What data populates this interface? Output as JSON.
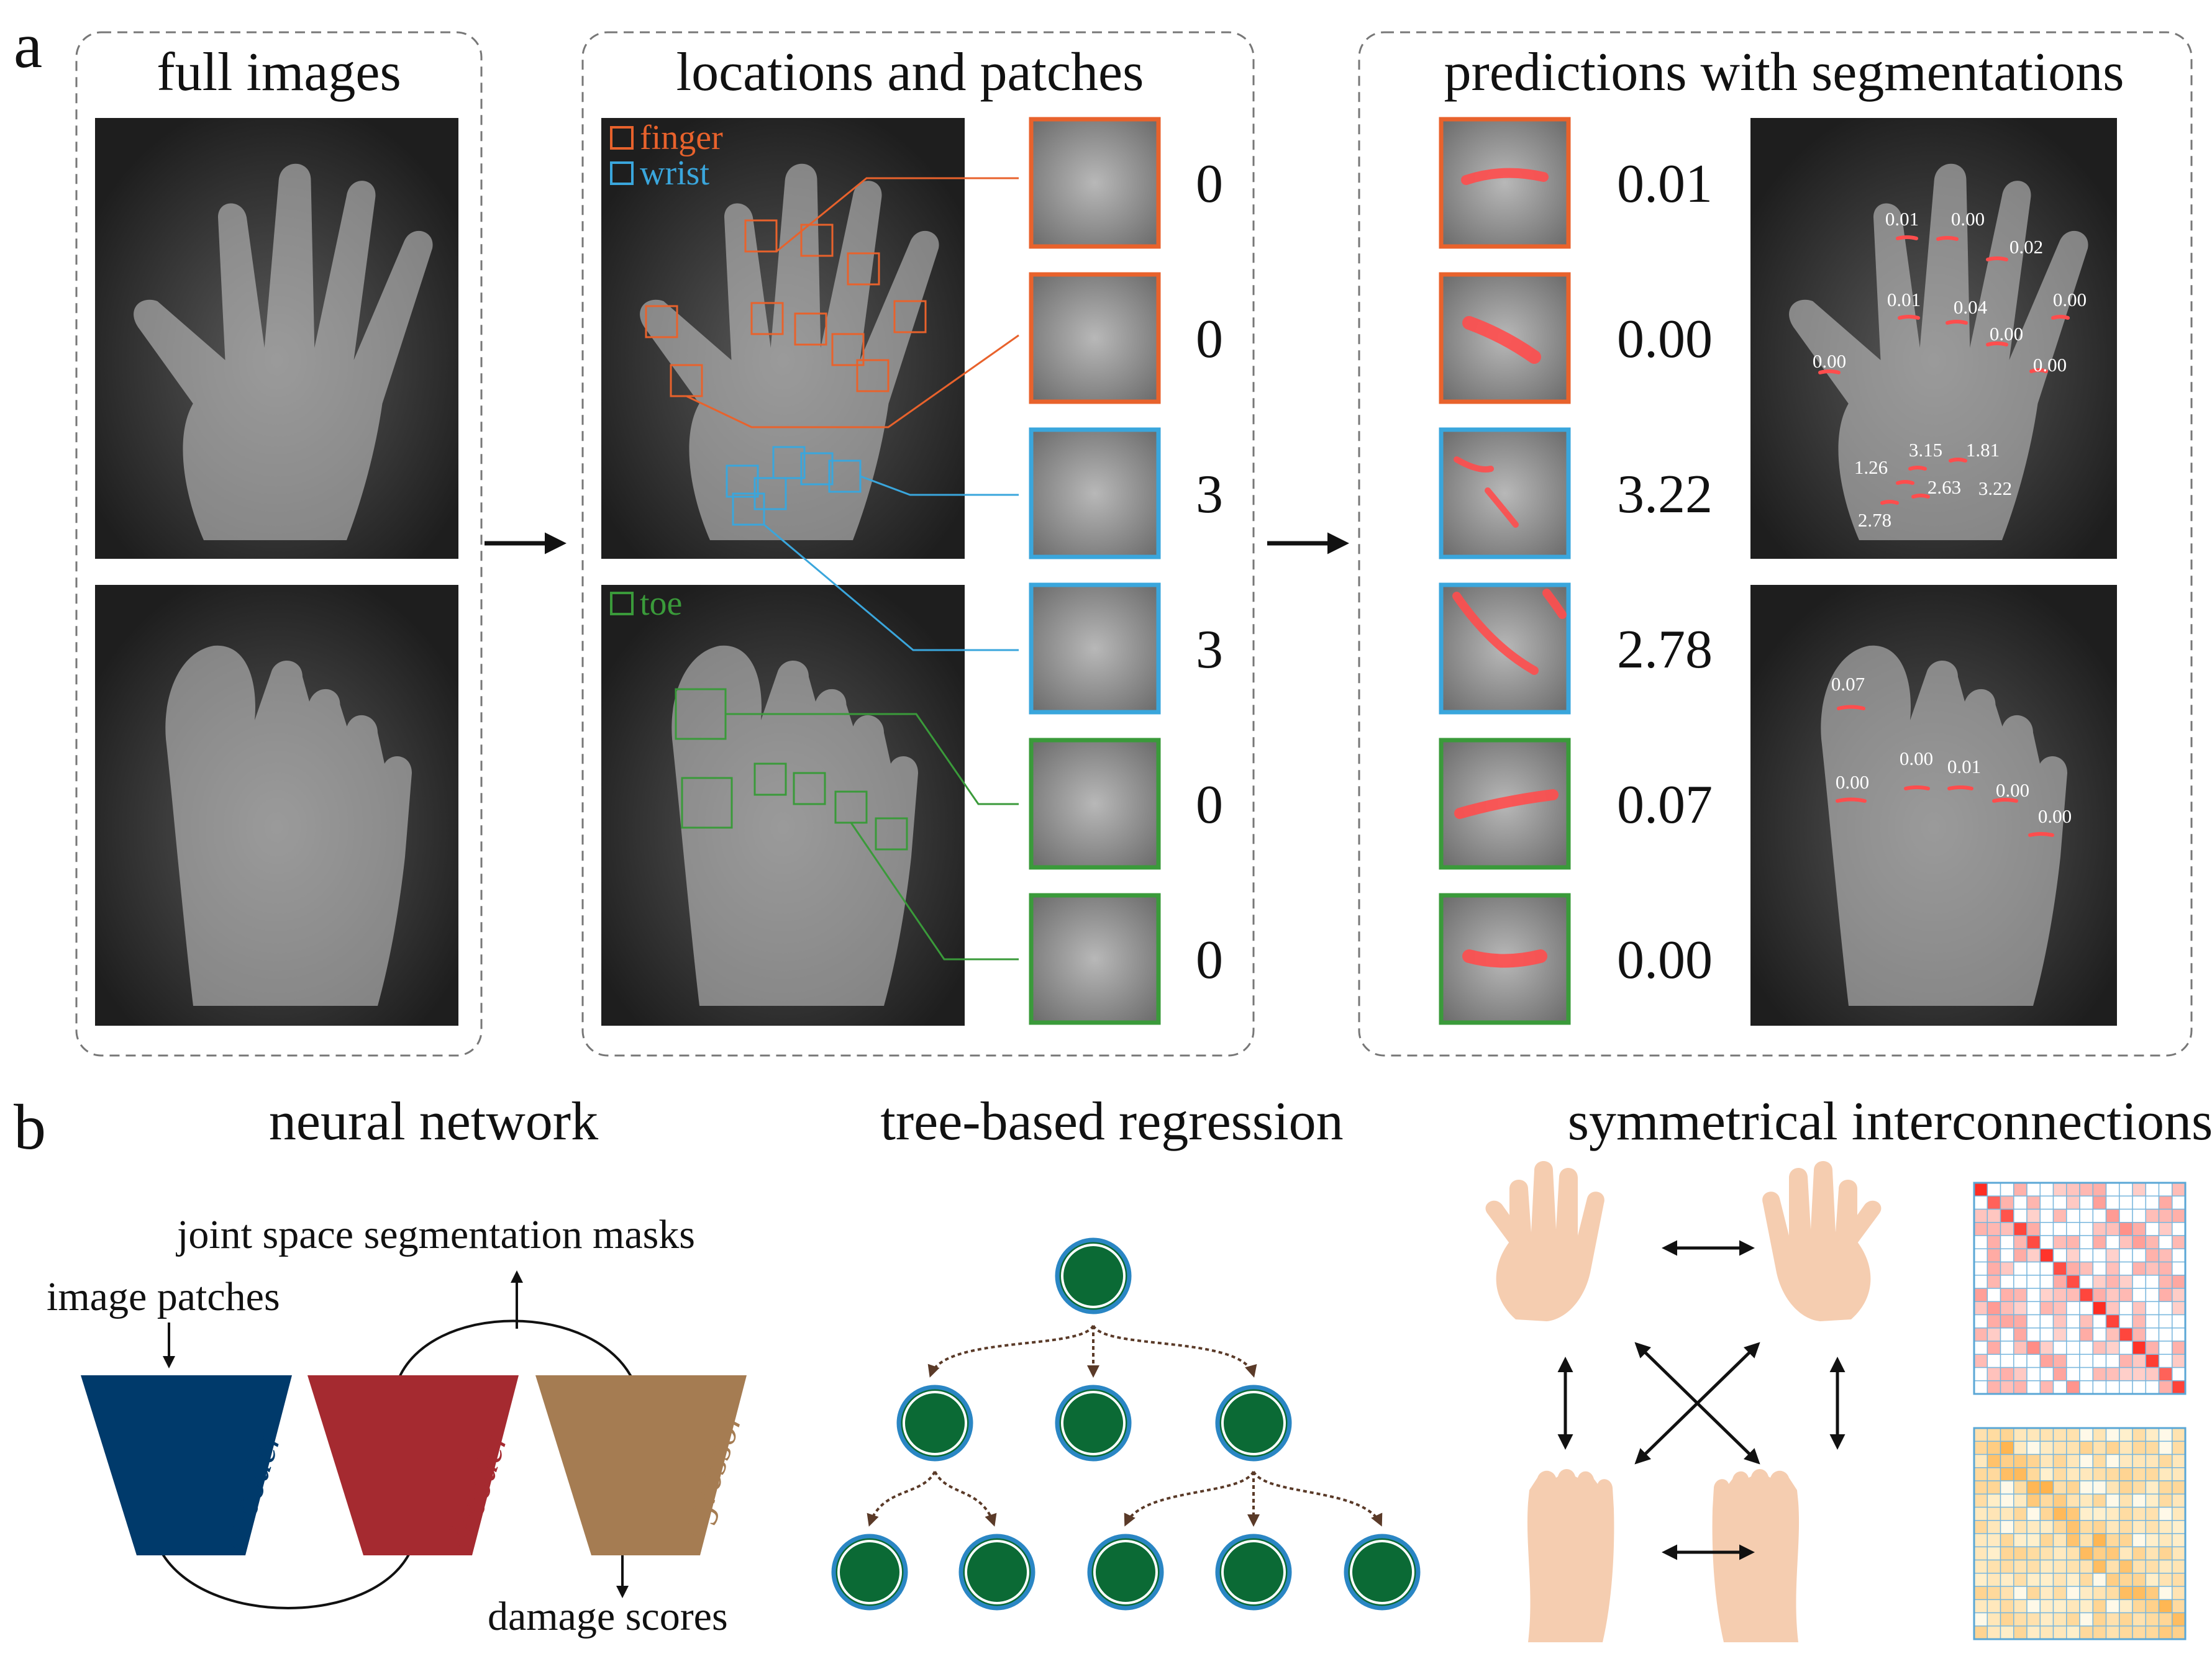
{
  "panels": {
    "a": {
      "letter": "a",
      "sections": {
        "full_images": {
          "title": "full images"
        },
        "locations": {
          "title": "locations and patches",
          "legend": {
            "finger": "finger",
            "wrist": "wrist",
            "toe": "toe"
          },
          "scores": [
            "0",
            "0",
            "3",
            "3",
            "0",
            "0"
          ]
        },
        "predictions": {
          "title": "predictions with segmentations",
          "scores": [
            "0.01",
            "0.00",
            "3.22",
            "2.78",
            "0.07",
            "0.00"
          ],
          "hand_labels": [
            "0.01",
            "0.00",
            "0.02",
            "0.01",
            "0.04",
            "0.00",
            "0.00",
            "0.00",
            "0.00",
            "3.15",
            "1.81",
            "1.26",
            "2.63",
            "3.22",
            "2.78"
          ],
          "foot_labels": [
            "0.07",
            "0.00",
            "0.00",
            "0.01",
            "0.00",
            "0.00"
          ]
        }
      }
    },
    "b": {
      "letter": "b",
      "neural_network": {
        "title": "neural network",
        "masks_label": "joint space segmentation masks",
        "patches_label": "image patches",
        "damage_label": "damage scores",
        "encoder": "encoder",
        "decoder": "decoder",
        "regressor": "regressor"
      },
      "tree": {
        "title": "tree-based regression"
      },
      "symmetry": {
        "title": "symmetrical interconnections"
      }
    }
  },
  "colors": {
    "finger": "#e8622c",
    "wrist": "#3aa6dc",
    "toe": "#3a9a3a",
    "encoder": "#003a6b",
    "decoder": "#a52a30",
    "regressor": "#a57c52",
    "node_fill": "#0b6a35",
    "node_ring": "#2a86c4",
    "skin": "#f5cdb0",
    "segmentation": "#ff4d4d"
  }
}
